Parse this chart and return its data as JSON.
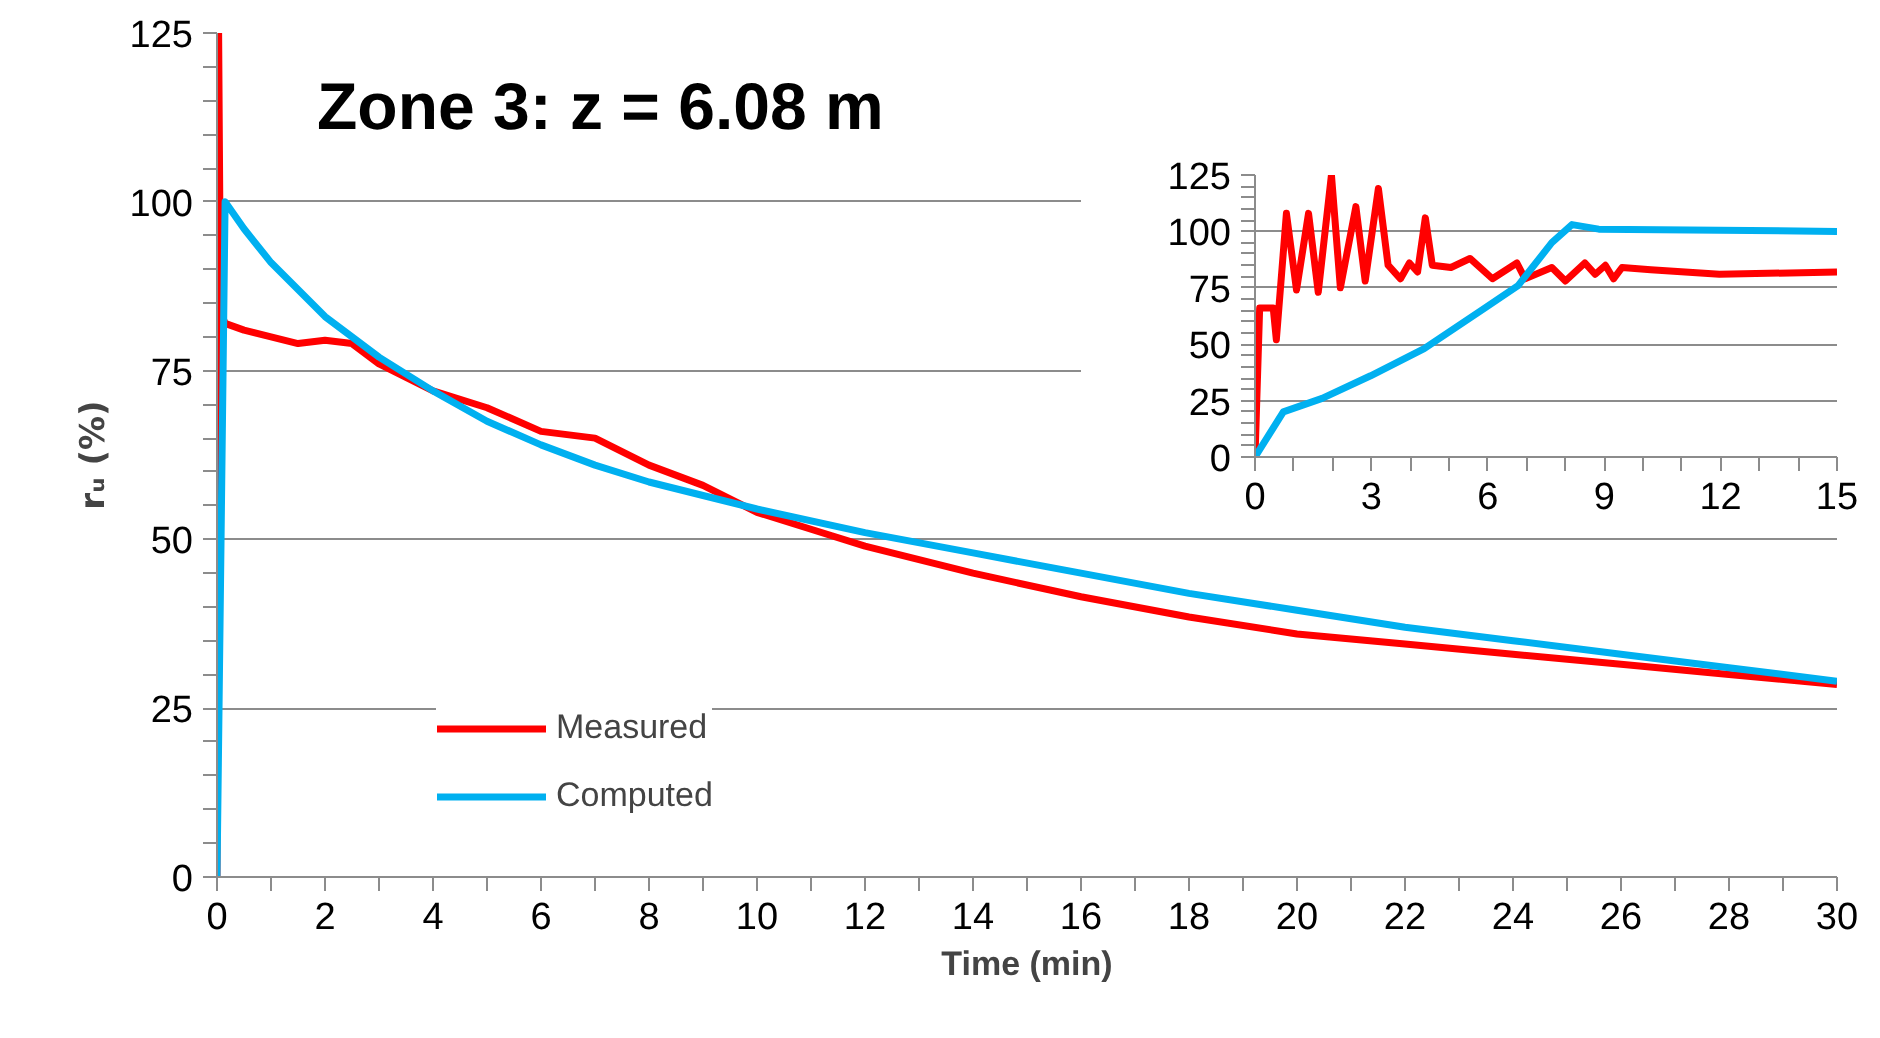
{
  "chart_data": [
    {
      "type": "line",
      "title": "Zone 3: z = 6.08 m",
      "xlabel": "Time (min)",
      "ylabel": "rᵤ (%)",
      "xlim": [
        0,
        30
      ],
      "xticks": [
        0,
        2,
        4,
        6,
        8,
        10,
        12,
        14,
        16,
        18,
        20,
        22,
        24,
        26,
        28,
        30
      ],
      "ylim": [
        0,
        125
      ],
      "yticks": [
        0,
        25,
        50,
        75,
        100,
        125
      ],
      "grid": "y",
      "legend": "bottom left",
      "series": [
        {
          "name": "Measured",
          "color": "#ff0000",
          "x": [
            0,
            0.03,
            0.06,
            0.1,
            0.15,
            0.5,
            1,
            1.5,
            2,
            2.5,
            3,
            3.5,
            4,
            5,
            6,
            7,
            8,
            9,
            10,
            11,
            12,
            14,
            16,
            18,
            20,
            22,
            24,
            26,
            28,
            30
          ],
          "values": [
            0,
            125,
            90,
            83,
            82,
            81,
            80,
            79,
            79.5,
            79,
            76,
            74,
            72,
            69.5,
            66,
            65,
            61,
            58,
            54,
            51.5,
            49,
            45,
            41.5,
            38.5,
            36,
            34.5,
            33,
            31.5,
            30,
            28.5
          ]
        },
        {
          "name": "Computed",
          "color": "#00b0f0",
          "x": [
            0,
            0.15,
            0.5,
            1,
            2,
            3,
            4,
            5,
            6,
            7,
            8,
            9,
            10,
            12,
            14,
            16,
            18,
            20,
            22,
            24,
            26,
            28,
            30
          ],
          "values": [
            0,
            100,
            96,
            91,
            83,
            77,
            72,
            67.5,
            64,
            61,
            58.5,
            56.5,
            54.5,
            51,
            48,
            45,
            42,
            39.5,
            37,
            35,
            33,
            31,
            29
          ]
        }
      ]
    },
    {
      "type": "line",
      "xlim": [
        0,
        15
      ],
      "xticks": [
        0,
        3,
        6,
        9,
        12,
        15
      ],
      "ylim": [
        0,
        125
      ],
      "yticks": [
        0,
        25,
        50,
        75,
        100,
        125
      ],
      "grid": "y",
      "series": [
        {
          "color": "#ff0000",
          "x": [
            0,
            0.12,
            0.47,
            0.55,
            0.81,
            1.07,
            1.38,
            1.63,
            1.97,
            2.2,
            2.6,
            2.84,
            3.18,
            3.43,
            3.75,
            3.98,
            4.19,
            4.39,
            4.57,
            5.05,
            5.54,
            6.12,
            6.75,
            6.96,
            7.65,
            8.0,
            8.5,
            8.77,
            9.03,
            9.24,
            9.46,
            10.2,
            11.97,
            15
          ],
          "values": [
            0,
            66,
            66,
            52,
            108,
            74,
            108,
            73,
            125,
            75,
            111,
            78,
            119,
            85,
            79,
            86,
            82,
            106,
            85,
            84,
            88,
            79,
            86,
            79,
            84,
            78,
            86,
            81,
            85,
            79,
            84,
            83,
            81,
            82
          ]
        },
        {
          "color": "#00b0f0",
          "x": [
            0,
            0.73,
            1.73,
            2.98,
            4.36,
            5.92,
            6.78,
            7.65,
            8.17,
            8.86,
            15
          ],
          "values": [
            0,
            20,
            26,
            36,
            48,
            66,
            76,
            95,
            103,
            101,
            100
          ]
        }
      ]
    }
  ]
}
